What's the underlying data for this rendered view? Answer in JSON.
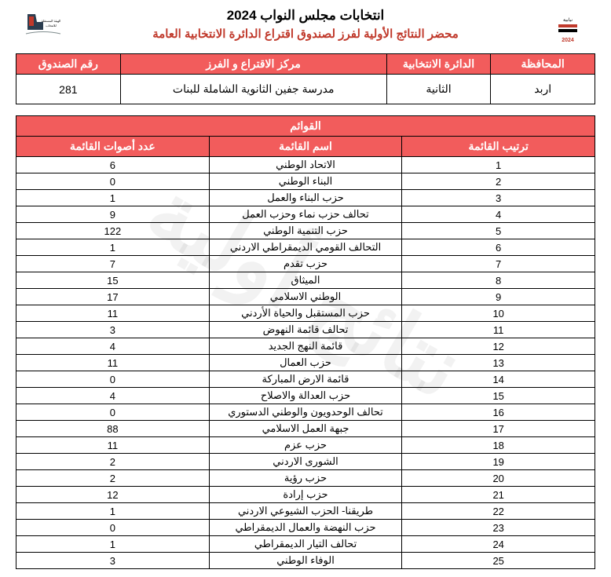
{
  "header": {
    "title1": "انتخابات مجلس النواب 2024",
    "title2": "محضر النتائج الأولية لفرز لصندوق اقتراع الدائرة الانتخابية العامة"
  },
  "watermark": "نتائج أولية",
  "info": {
    "headers": {
      "governorate": "المحافظة",
      "district": "الدائرة الانتخابية",
      "center": "مركز الاقتراع و الفرز",
      "box": "رقم الصندوق"
    },
    "values": {
      "governorate": "اربد",
      "district": "الثانية",
      "center": "مدرسة جفين الثانوية الشاملة للبنات",
      "box": "281"
    }
  },
  "lists": {
    "section_title": "القوائم",
    "headers": {
      "rank": "ترتيب القائمة",
      "name": "اسم القائمة",
      "votes": "عدد أصوات القائمة"
    },
    "rows": [
      {
        "rank": "1",
        "name": "الاتحاد الوطني",
        "votes": "6"
      },
      {
        "rank": "2",
        "name": "البناء الوطني",
        "votes": "0"
      },
      {
        "rank": "3",
        "name": "حزب البناء والعمل",
        "votes": "1"
      },
      {
        "rank": "4",
        "name": "تحالف حزب نماء وحزب العمل",
        "votes": "9"
      },
      {
        "rank": "5",
        "name": "حزب التنمية الوطني",
        "votes": "122"
      },
      {
        "rank": "6",
        "name": "التحالف القومي الديمقراطي الاردني",
        "votes": "1"
      },
      {
        "rank": "7",
        "name": "حزب تقدم",
        "votes": "7"
      },
      {
        "rank": "8",
        "name": "الميثاق",
        "votes": "15"
      },
      {
        "rank": "9",
        "name": "الوطني الاسلامي",
        "votes": "17"
      },
      {
        "rank": "10",
        "name": "حزب المستقبل والحياة الأردني",
        "votes": "11"
      },
      {
        "rank": "11",
        "name": "تحالف قائمة النهوض",
        "votes": "3"
      },
      {
        "rank": "12",
        "name": "قائمة النهج الجديد",
        "votes": "4"
      },
      {
        "rank": "13",
        "name": "حزب العمال",
        "votes": "11"
      },
      {
        "rank": "14",
        "name": "قائمة الارض المباركة",
        "votes": "0"
      },
      {
        "rank": "15",
        "name": "حزب العدالة والاصلاح",
        "votes": "4"
      },
      {
        "rank": "16",
        "name": "تحالف الوحدويون والوطني الدستوري",
        "votes": "0"
      },
      {
        "rank": "17",
        "name": "جبهة العمل الاسلامي",
        "votes": "88"
      },
      {
        "rank": "18",
        "name": "حزب عزم",
        "votes": "11"
      },
      {
        "rank": "19",
        "name": "الشورى الاردني",
        "votes": "2"
      },
      {
        "rank": "20",
        "name": "حزب رؤية",
        "votes": "2"
      },
      {
        "rank": "21",
        "name": "حزب إرادة",
        "votes": "12"
      },
      {
        "rank": "22",
        "name": "طريقنا- الحزب الشيوعي الاردني",
        "votes": "1"
      },
      {
        "rank": "23",
        "name": "حزب النهضة والعمال الديمقراطي",
        "votes": "0"
      },
      {
        "rank": "24",
        "name": "تحالف التيار الديمقراطي",
        "votes": "1"
      },
      {
        "rank": "25",
        "name": "الوفاء الوطني",
        "votes": "3"
      }
    ]
  }
}
